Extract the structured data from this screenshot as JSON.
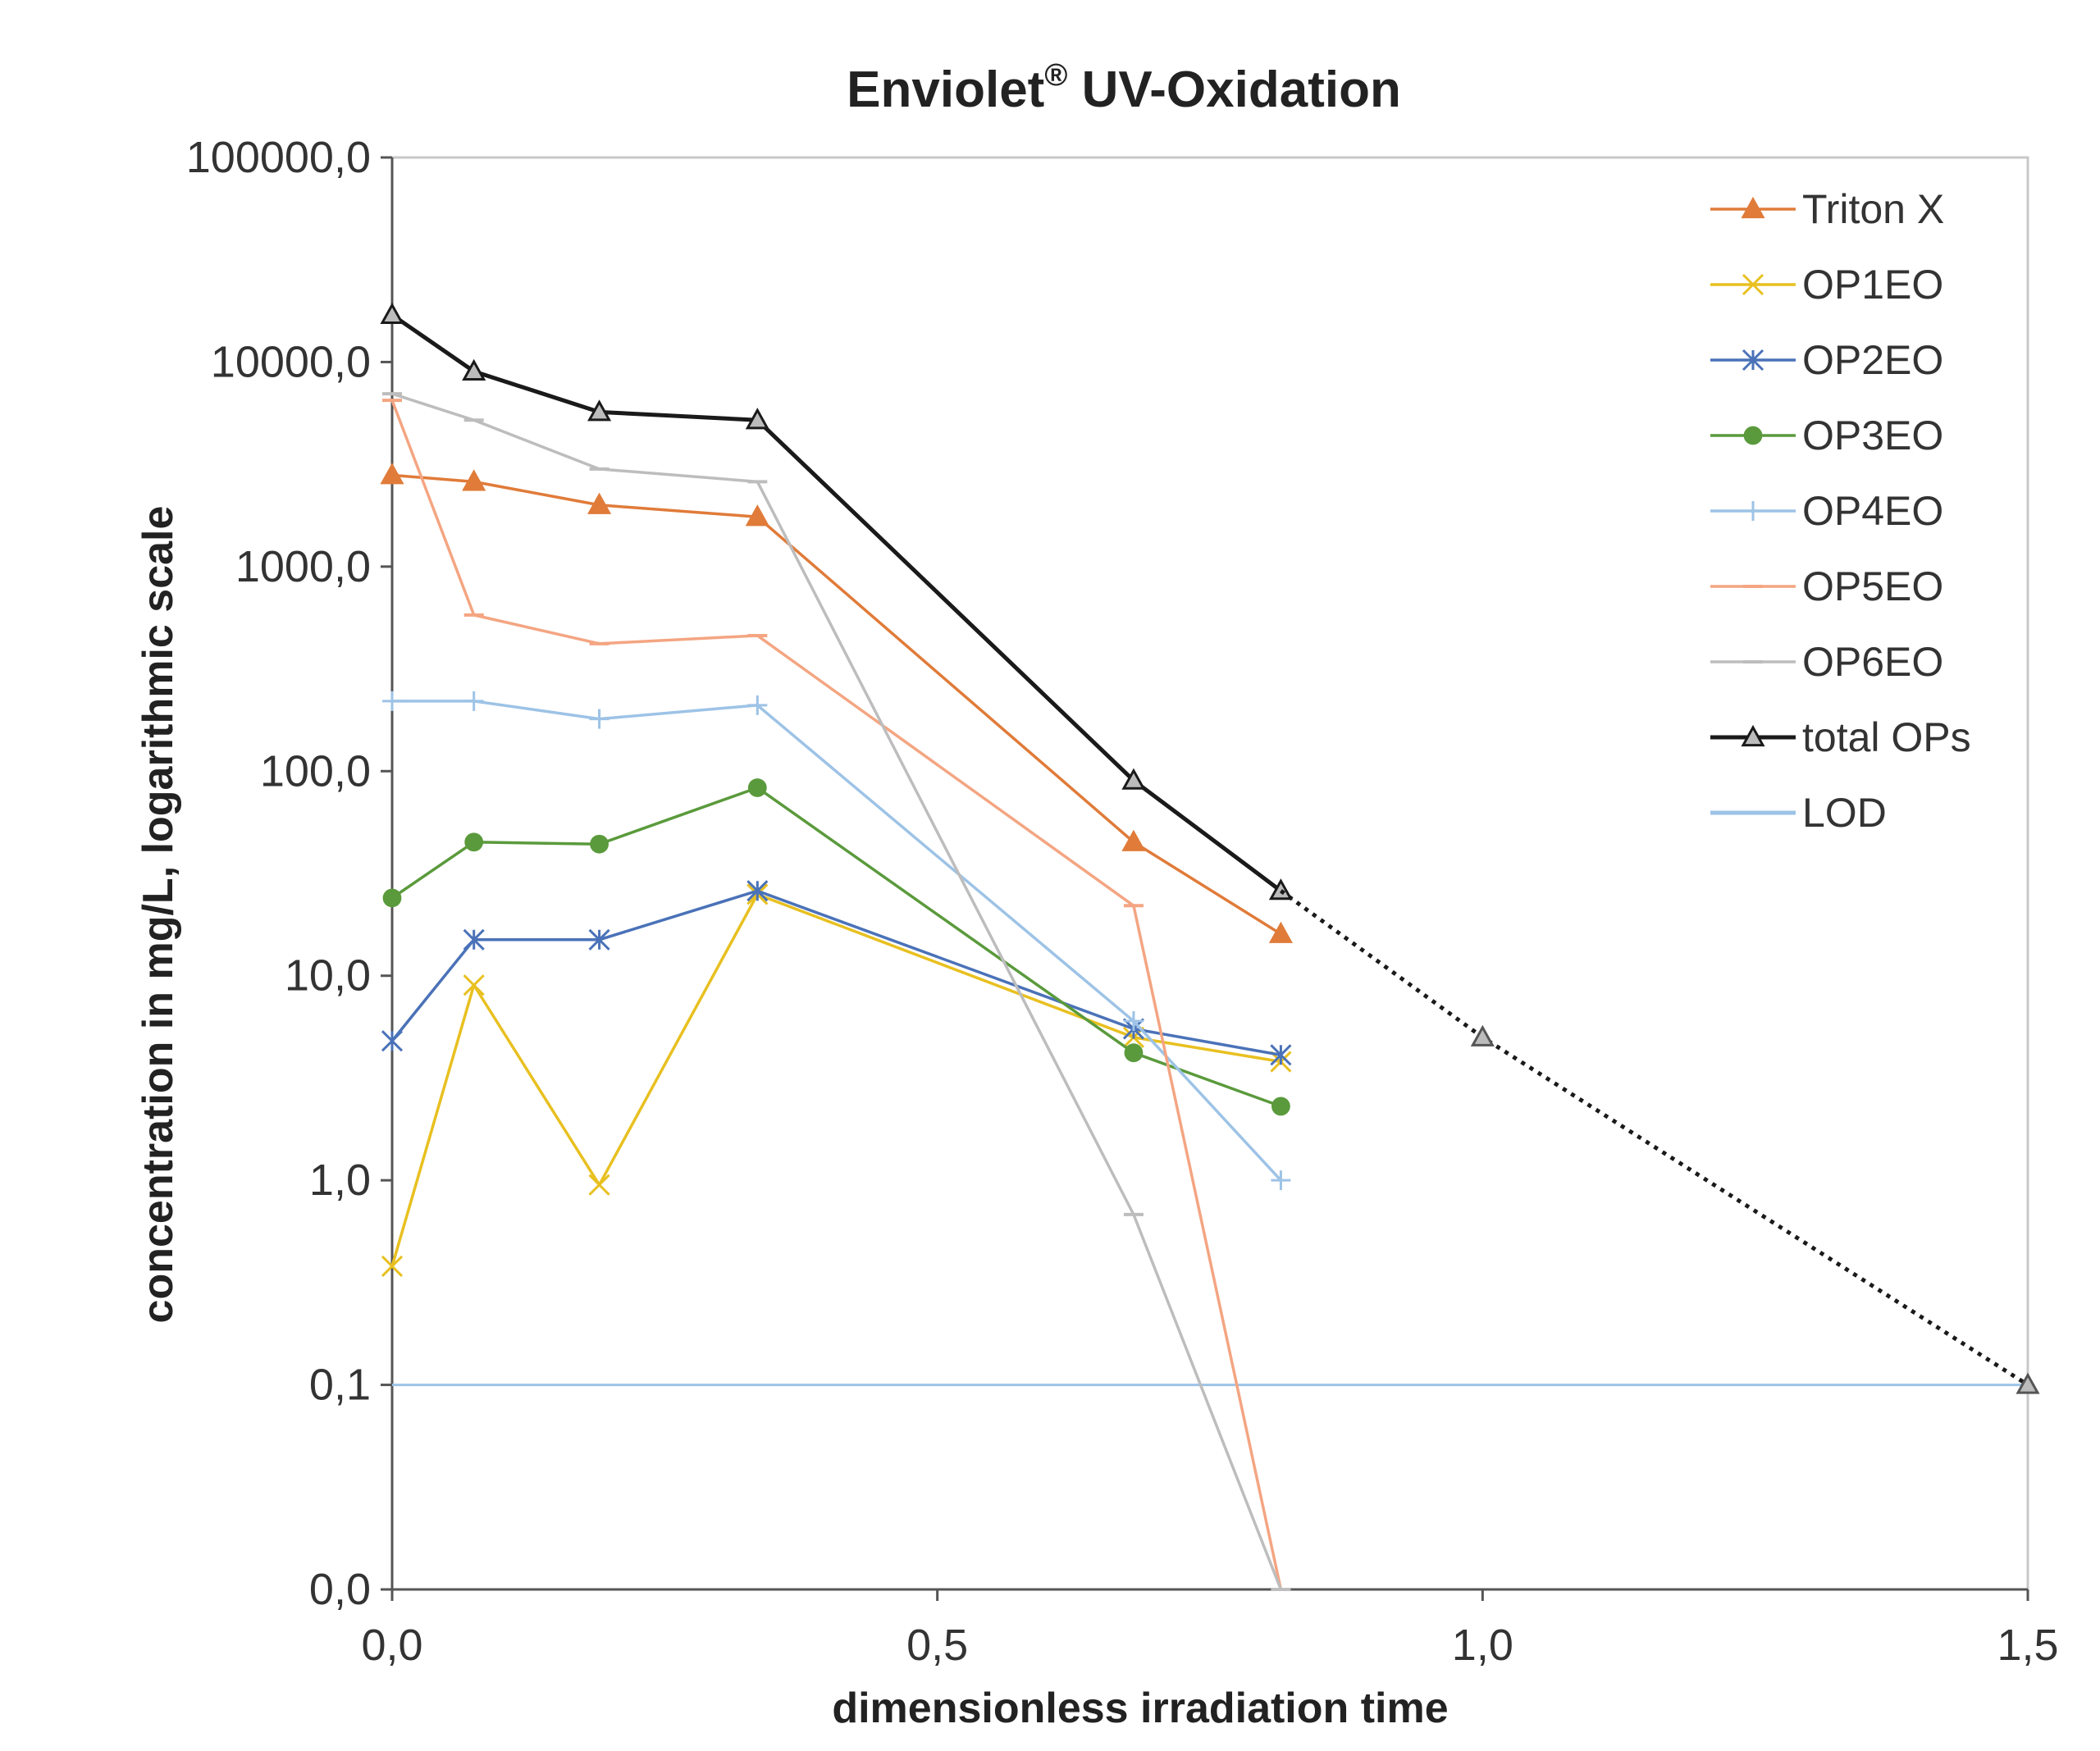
{
  "chart_data": {
    "type": "line",
    "title": "Enviolet",
    "title_mark": "®",
    "title_rest": " UV-Oxidation",
    "xlabel": "dimensionless  irradiation time",
    "ylabel": "concentration in mg/L, logarithmic scale",
    "x_ticks": [
      "0,0",
      "0,5",
      "1,0",
      "1,5"
    ],
    "x_tick_values": [
      0,
      0.5,
      1.0,
      1.5
    ],
    "xlim": [
      0,
      1.5
    ],
    "y_ticks": [
      "100000,0",
      "10000,0",
      "1000,0",
      "100,0",
      "10,0",
      "1,0",
      "0,1",
      "0,0"
    ],
    "y_tick_log_values": [
      5,
      4,
      3,
      2,
      1,
      0,
      -1,
      -2
    ],
    "ylim_log10": [
      -2,
      5
    ],
    "x": [
      0,
      0.075,
      0.19,
      0.335,
      0.68,
      0.815
    ],
    "series": [
      {
        "name": "Triton X",
        "color": "#E07B39",
        "marker": "triangle-filled",
        "values": [
          2800,
          2600,
          2000,
          1750,
          45,
          16
        ]
      },
      {
        "name": "OP1EO",
        "color": "#E8C020",
        "marker": "x",
        "values": [
          0.38,
          9,
          0.95,
          25,
          5,
          3.8
        ]
      },
      {
        "name": "OP2EO",
        "color": "#4A72B8",
        "marker": "star",
        "values": [
          4.8,
          15,
          15,
          26,
          5.5,
          4.1
        ]
      },
      {
        "name": "OP3EO",
        "color": "#5A9A3C",
        "marker": "circle",
        "values": [
          24,
          45,
          44,
          83,
          4.2,
          2.3
        ]
      },
      {
        "name": "OP4EO",
        "color": "#9DC3E6",
        "marker": "plus",
        "values": [
          220,
          220,
          180,
          210,
          6,
          1.0
        ]
      },
      {
        "name": "OP5EO",
        "color": "#F4A582",
        "marker": "dash",
        "values": [
          6500,
          580,
          420,
          460,
          22,
          0.01
        ]
      },
      {
        "name": "OP6EO",
        "color": "#BDBDBD",
        "marker": "dash",
        "values": [
          7000,
          5200,
          3000,
          2600,
          0.68,
          0.01
        ]
      },
      {
        "name": "total OPs",
        "color": "#1A1A1A",
        "marker": "triangle-open",
        "values": [
          17000,
          9000,
          5700,
          5200,
          90,
          26
        ]
      },
      {
        "name": "LOD",
        "color": "#9DC3E6",
        "marker": "none",
        "x": [
          0,
          1.5
        ],
        "values": [
          0.1,
          0.1
        ]
      }
    ],
    "extrapolation": {
      "name": "total OPs extrapolation",
      "color": "#1A1A1A",
      "style": "dotted",
      "x": [
        0.815,
        1.0,
        1.5
      ],
      "values": [
        26,
        5,
        0.1
      ]
    },
    "legend": [
      "Triton X",
      "OP1EO",
      "OP2EO",
      "OP3EO",
      "OP4EO",
      "OP5EO",
      "OP6EO",
      "total OPs",
      "LOD"
    ],
    "legend_position": "top-right",
    "grid": false
  }
}
